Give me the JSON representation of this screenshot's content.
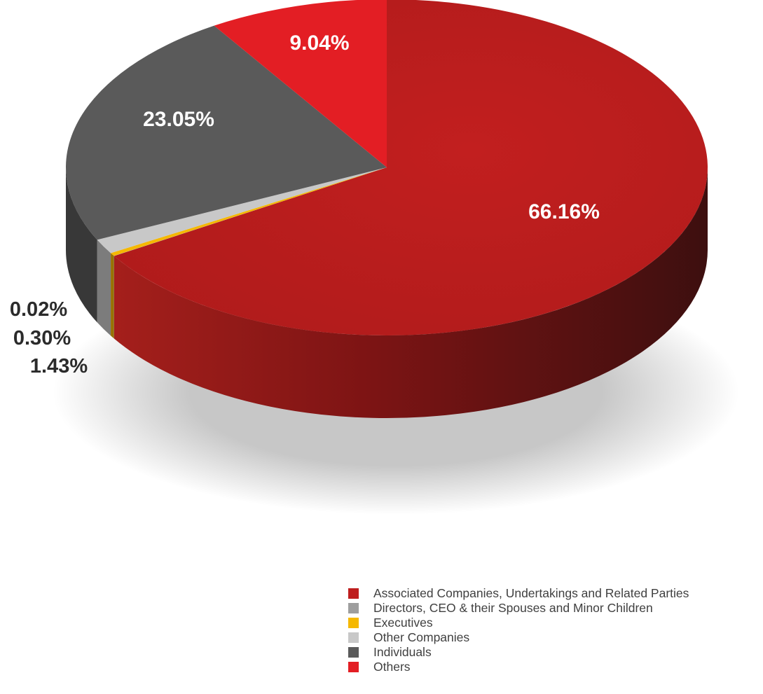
{
  "chart_data": {
    "type": "pie",
    "three_d": true,
    "title": "",
    "labels": [
      "Associated Companies, Undertakings and Related Parties",
      "Directors, CEO & their Spouses and Minor Children",
      "Executives",
      "Other Companies",
      "Individuals",
      "Others"
    ],
    "values": [
      66.16,
      0.02,
      0.3,
      1.43,
      23.05,
      9.04
    ],
    "value_labels": [
      "66.16%",
      "0.02%",
      "0.30%",
      "1.43%",
      "23.05%",
      "9.04%"
    ],
    "colors": [
      "#be1e1e",
      "#9e9e9e",
      "#f5b800",
      "#c8c8c8",
      "#5a5a5a",
      "#e31e24"
    ],
    "legend_position": "bottom-right"
  }
}
